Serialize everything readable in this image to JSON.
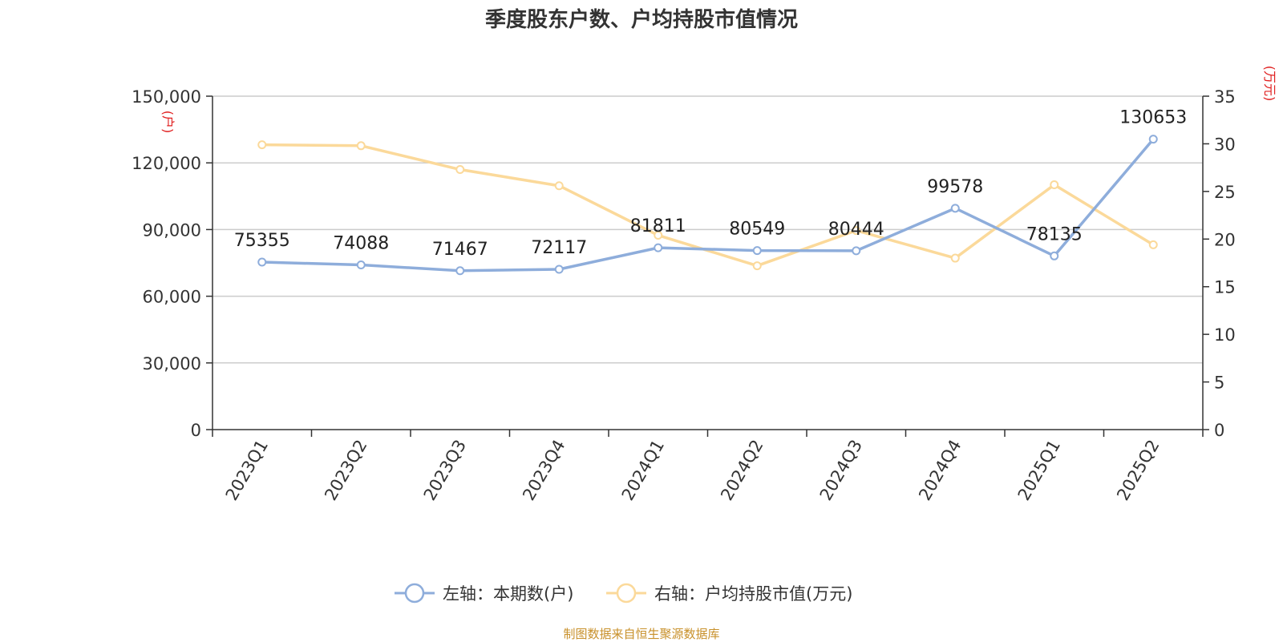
{
  "title": "季度股东户数、户均持股市值情况",
  "source": "制图数据来自恒生聚源数据库",
  "colors": {
    "left_series": "#8eaddb",
    "right_series": "#fbd99a",
    "unit": "#e02020",
    "grid": "#cccccc",
    "axis": "#333333",
    "source": "#c8902a"
  },
  "chart_data": {
    "type": "line",
    "categories": [
      "2023Q1",
      "2023Q2",
      "2023Q3",
      "2023Q4",
      "2024Q1",
      "2024Q2",
      "2024Q3",
      "2024Q4",
      "2025Q1",
      "2025Q2"
    ],
    "left_axis": {
      "unit": "(户)",
      "ylim": [
        0,
        150000
      ],
      "ticks": [
        "0",
        "30,000",
        "60,000",
        "90,000",
        "120,000",
        "150,000"
      ]
    },
    "right_axis": {
      "unit": "(万元)",
      "ylim": [
        0,
        35
      ],
      "ticks": [
        "0",
        "5",
        "10",
        "15",
        "20",
        "25",
        "30",
        "35"
      ]
    },
    "series": [
      {
        "name": "左轴：本期数(户)",
        "axis": "left",
        "values": [
          75355,
          74088,
          71467,
          72117,
          81811,
          80549,
          80444,
          99578,
          78135,
          130653
        ],
        "labels": [
          "75355",
          "74088",
          "71467",
          "72117",
          "81811",
          "80549",
          "80444",
          "99578",
          "78135",
          "130653"
        ]
      },
      {
        "name": "右轴：户均持股市值(万元)",
        "axis": "right",
        "values": [
          29.9,
          29.8,
          27.3,
          25.6,
          20.4,
          17.2,
          20.9,
          18.0,
          25.7,
          19.4
        ]
      }
    ],
    "grid": true,
    "legend_position": "bottom"
  }
}
